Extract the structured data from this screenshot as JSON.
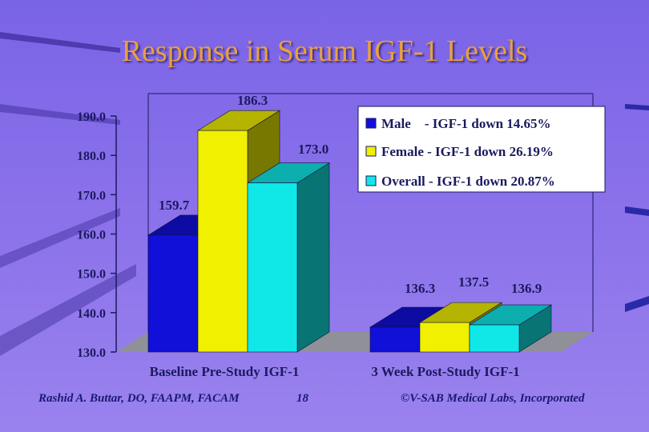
{
  "slide": {
    "title": "Response in Serum IGF-1 Levels",
    "footer_left": "Rashid A. Buttar, DO, FAAPM, FACAM",
    "footer_page": "18",
    "footer_right": "©V-SAB Medical Labs, Incorporated"
  },
  "chart_data": {
    "type": "bar",
    "categories": [
      "Baseline Pre-Study IGF-1",
      "3 Week Post-Study IGF-1"
    ],
    "series": [
      {
        "name": "Male",
        "values": [
          159.7,
          136.3
        ],
        "color": "#1010d8"
      },
      {
        "name": "Female",
        "values": [
          186.3,
          137.5
        ],
        "color": "#f0f000"
      },
      {
        "name": "Overall",
        "values": [
          173.0,
          136.9
        ],
        "color": "#10e8e8"
      }
    ],
    "data_labels": [
      [
        "159.7",
        "186.3",
        "173.0"
      ],
      [
        "136.3",
        "137.5",
        "136.9"
      ]
    ],
    "legend": [
      "Male    - IGF-1 down 14.65%",
      "Female - IGF-1 down 26.19%",
      "Overall - IGF-1 down 20.87%"
    ],
    "legend_position": "top-right",
    "ylim": [
      130,
      190
    ],
    "yticks": [
      "130.0",
      "140.0",
      "150.0",
      "160.0",
      "170.0",
      "180.0",
      "190.0"
    ],
    "grid": false
  }
}
